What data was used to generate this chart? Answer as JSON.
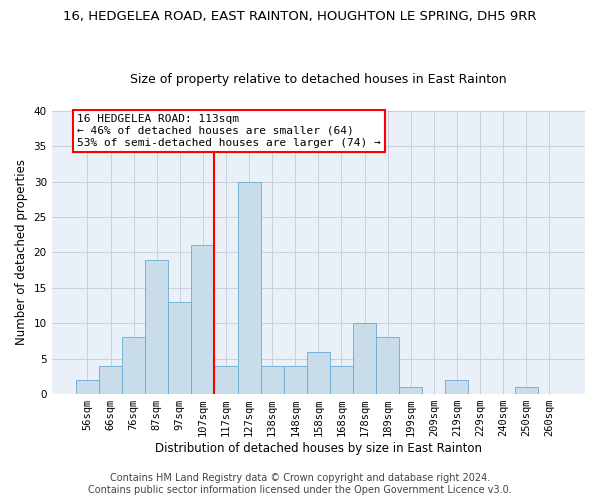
{
  "title_line1": "16, HEDGELEA ROAD, EAST RAINTON, HOUGHTON LE SPRING, DH5 9RR",
  "title_line2": "Size of property relative to detached houses in East Rainton",
  "xlabel": "Distribution of detached houses by size in East Rainton",
  "ylabel": "Number of detached properties",
  "bar_labels": [
    "56sqm",
    "66sqm",
    "76sqm",
    "87sqm",
    "97sqm",
    "107sqm",
    "117sqm",
    "127sqm",
    "138sqm",
    "148sqm",
    "158sqm",
    "168sqm",
    "178sqm",
    "189sqm",
    "199sqm",
    "209sqm",
    "219sqm",
    "229sqm",
    "240sqm",
    "250sqm",
    "260sqm"
  ],
  "bar_values": [
    2,
    4,
    8,
    19,
    13,
    21,
    4,
    30,
    4,
    4,
    6,
    4,
    10,
    8,
    1,
    0,
    2,
    0,
    0,
    1,
    0
  ],
  "bar_color": "#c8dcea",
  "bar_edge_color": "#6aaad4",
  "vline_x_index": 6,
  "vline_color": "red",
  "annotation_line1": "16 HEDGELEA ROAD: 113sqm",
  "annotation_line2": "← 46% of detached houses are smaller (64)",
  "annotation_line3": "53% of semi-detached houses are larger (74) →",
  "annotation_box_color": "white",
  "annotation_box_edge_color": "red",
  "ylim": [
    0,
    40
  ],
  "yticks": [
    0,
    5,
    10,
    15,
    20,
    25,
    30,
    35,
    40
  ],
  "grid_color": "#c8d0dc",
  "bg_color": "#eaf0f8",
  "footer_line1": "Contains HM Land Registry data © Crown copyright and database right 2024.",
  "footer_line2": "Contains public sector information licensed under the Open Government Licence v3.0.",
  "title_fontsize": 9.5,
  "subtitle_fontsize": 9,
  "ylabel_fontsize": 8.5,
  "xlabel_fontsize": 8.5,
  "tick_fontsize": 7.5,
  "annotation_fontsize": 8,
  "footer_fontsize": 7
}
